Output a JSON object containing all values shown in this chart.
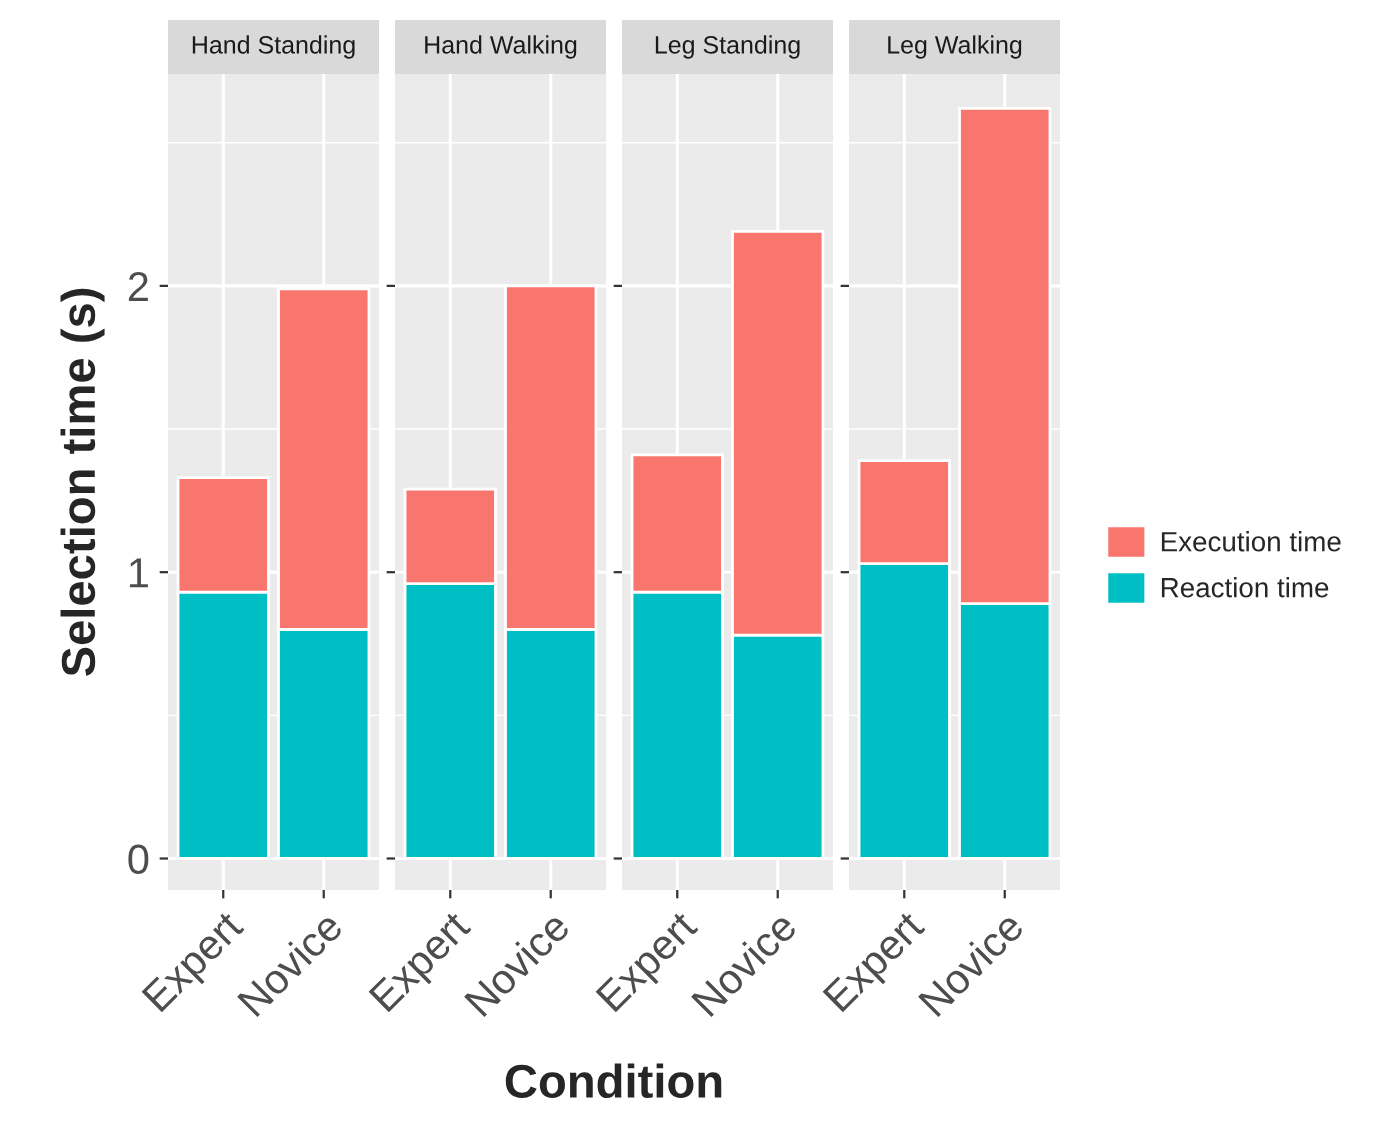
{
  "chart_data": [
    {
      "type": "bar",
      "title": "Hand Standing",
      "xlabel": "Condition",
      "ylabel": "Selection time (s)",
      "categories": [
        "Expert",
        "Novice"
      ],
      "stacked": true,
      "ylim": [
        -0.11,
        2.74
      ],
      "yticks": [
        0,
        1,
        2
      ],
      "grid": true,
      "legend": false,
      "series": [
        {
          "color": "#00bfc4",
          "values": [
            0.93,
            0.8
          ]
        },
        {
          "color": "#f8766d",
          "values": [
            0.4,
            1.19
          ]
        }
      ]
    },
    {
      "type": "bar",
      "title": "Hand Walking",
      "categories": [
        "Expert",
        "Novice"
      ],
      "stacked": true,
      "ylim": [
        -0.11,
        2.74
      ],
      "yticks": [
        0,
        1,
        2
      ],
      "grid": true,
      "legend": false,
      "tick_labels": "x",
      "series": [
        {
          "color": "#00bfc4",
          "values": [
            0.96,
            0.8
          ]
        },
        {
          "color": "#f8766d",
          "values": [
            0.33,
            1.2
          ]
        }
      ]
    },
    {
      "type": "bar",
      "title": "Leg Standing",
      "categories": [
        "Expert",
        "Novice"
      ],
      "stacked": true,
      "ylim": [
        -0.11,
        2.74
      ],
      "yticks": [
        0,
        1,
        2
      ],
      "grid": true,
      "legend": false,
      "tick_labels": "x",
      "series": [
        {
          "color": "#00bfc4",
          "values": [
            0.93,
            0.78
          ]
        },
        {
          "color": "#f8766d",
          "values": [
            0.48,
            1.41
          ]
        }
      ]
    },
    {
      "type": "bar",
      "title": "Leg Walking",
      "categories": [
        "Expert",
        "Novice"
      ],
      "stacked": true,
      "ylim": [
        -0.11,
        2.74
      ],
      "yticks": [
        0,
        1,
        2
      ],
      "grid": true,
      "legend": "right",
      "tick_labels": "x",
      "series": [
        {
          "name": "Reaction time",
          "color": "#00bfc4",
          "values": [
            1.03,
            0.89
          ]
        },
        {
          "name": "Execution time",
          "color": "#f8766d",
          "values": [
            0.36,
            1.73
          ]
        }
      ]
    }
  ]
}
